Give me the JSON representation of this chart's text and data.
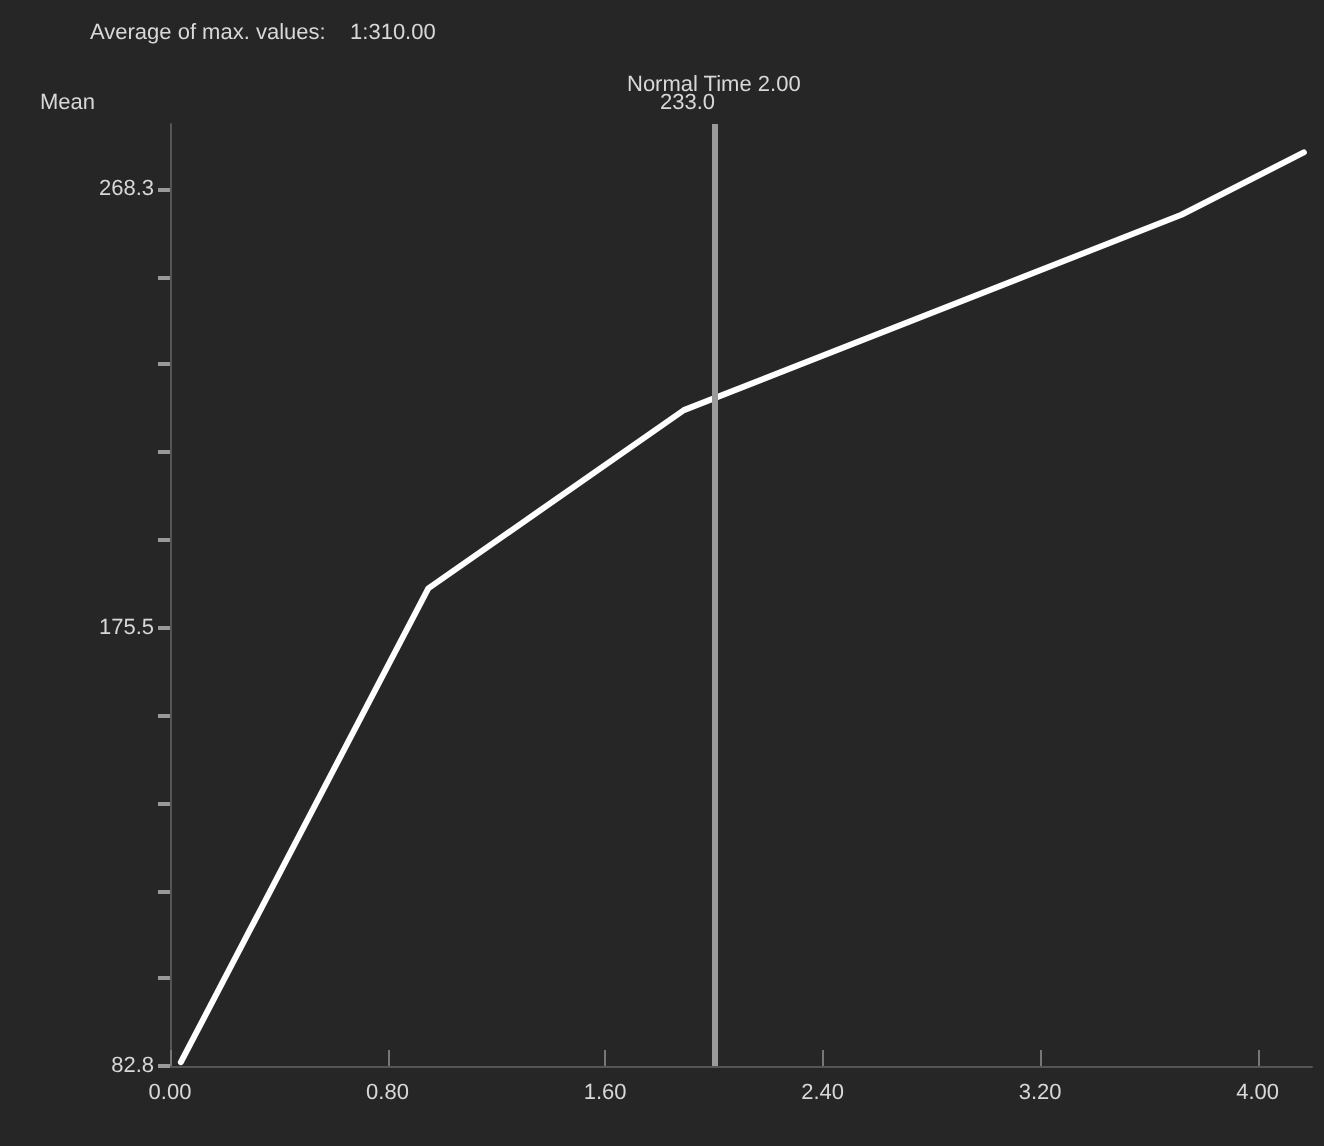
{
  "chart_data": {
    "type": "line",
    "title": "Average of max. values:    1:310.00",
    "x": [
      0.04,
      0.95,
      1.89,
      3.72,
      4.17
    ],
    "series": [
      {
        "color": "#ffffff",
        "values": [
          83.6,
          183.8,
          221.5,
          262.8,
          276
        ]
      }
    ],
    "xlim": [
      0,
      4.2
    ],
    "xticks": [
      {
        "value": 0,
        "label": "0.00"
      },
      {
        "value": 0.8,
        "label": "0.80"
      },
      {
        "value": 1.6,
        "label": "1.60"
      },
      {
        "value": 2.4,
        "label": "2.40"
      },
      {
        "value": 3.2,
        "label": "3.20"
      },
      {
        "value": 4.0,
        "label": "4.00"
      }
    ],
    "ylim": [
      82.8,
      282
    ],
    "yticks": [
      82.8,
      {
        "value": 101.35,
        "label": null
      },
      {
        "value": 119.9,
        "label": null
      },
      {
        "value": 138.45,
        "label": null
      },
      {
        "value": 157,
        "label": null
      },
      175.5,
      {
        "value": 194.1,
        "label": null
      },
      {
        "value": 212.6,
        "label": null
      },
      {
        "value": 231.2,
        "label": null
      },
      {
        "value": 249.7,
        "label": null
      },
      268.3
    ],
    "ref_lines": [
      {
        "axis": "x",
        "value": 2.0,
        "label": "Normal Time 2.00",
        "color": "#9a9a9a"
      }
    ],
    "annotations": [
      "Mean",
      "233.0"
    ],
    "grid": false,
    "marker": "none",
    "line_style": "solid"
  }
}
